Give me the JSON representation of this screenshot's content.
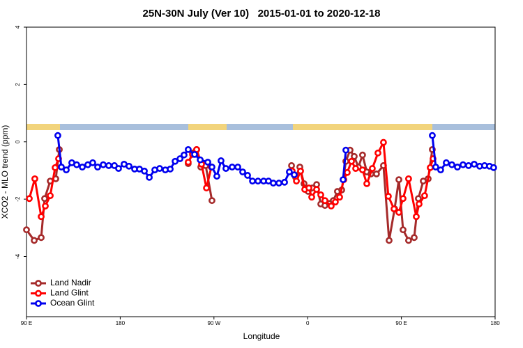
{
  "chart_data": {
    "type": "line",
    "title": "25N-30N July (Ver 10)   2015-01-01 to 2020-12-18",
    "x_label": "Longitude",
    "y_label": "XCO2 - MLO trend (ppm)",
    "xlim": [
      90,
      540
    ],
    "ylim": [
      -6.1,
      4
    ],
    "xticks": [
      {
        "value": 90,
        "label": "90 E"
      },
      {
        "value": 180,
        "label": "180"
      },
      {
        "value": 270,
        "label": "90 W"
      },
      {
        "value": 360,
        "label": "0"
      },
      {
        "value": 450,
        "label": "90 E"
      },
      {
        "value": 540,
        "label": "180"
      }
    ],
    "yticks": [
      4,
      2,
      0,
      -2,
      -4
    ],
    "legend_position": "bottom-left",
    "series": [
      {
        "name": "Land Nadir",
        "color": "#a52a2a",
        "x": [
          90,
          97.4,
          104.1,
          107.4,
          112.8,
          118.1,
          121.5,
          null,
          245.3,
          249.4,
          253.4,
          257.4,
          262.1,
          268.1,
          null,
          344.5,
          348.5,
          352.5,
          356.5,
          360.5,
          364.5,
          368.6,
          372.6,
          376.6,
          380.6,
          384.6,
          388.6,
          392.7,
          396.7,
          400.7,
          404.7,
          408.7,
          412.7,
          416.8,
          420.8,
          426.1,
          432.8,
          438.2,
          443.5,
          447.6,
          451.6,
          456.9,
          462.3,
          466.3,
          471,
          475.7,
          479.7
        ],
        "values": [
          -3.07,
          -3.44,
          -3.34,
          -1.98,
          -1.37,
          -1.29,
          -0.27,
          null,
          -0.76,
          -0.39,
          -0.27,
          -0.88,
          -0.83,
          -2.05,
          null,
          -0.83,
          -1.24,
          -0.88,
          -1.46,
          -1.73,
          -1.61,
          -1.49,
          -2.17,
          -2.22,
          -2.15,
          -2.05,
          -1.73,
          -1.68,
          -0.68,
          -0.29,
          -0.51,
          -0.88,
          -0.46,
          -1.05,
          -1.12,
          -1.12,
          -0.83,
          -3.44,
          -2.34,
          -1.32,
          -3.07,
          -3.44,
          -3.34,
          -1.98,
          -1.37,
          -1.29,
          -0.27
        ]
      },
      {
        "name": "Land Glint",
        "color": "#ff0000",
        "x": [
          92.7,
          98,
          104.1,
          108.1,
          112.8,
          117.5,
          120.8,
          null,
          245.3,
          249.4,
          253.4,
          258.1,
          262.8,
          267.5,
          null,
          345.1,
          349.2,
          353.2,
          357.2,
          361.2,
          363.9,
          368.6,
          372.6,
          376.6,
          382.6,
          386.6,
          390.7,
          394.7,
          398,
          402.1,
          406.1,
          412.7,
          416.8,
          422.1,
          427.5,
          432.8,
          437.5,
          442.9,
          447.6,
          451.6,
          456.9,
          464.3,
          467,
          472.3,
          477.7,
          480.4
        ],
        "values": [
          -1.98,
          -1.29,
          -2.61,
          -2.24,
          -1.88,
          -0.9,
          -0.59,
          null,
          -0.71,
          -0.44,
          -0.27,
          -0.78,
          -1.61,
          -0.88,
          null,
          -1.02,
          -1.37,
          -1.02,
          -1.66,
          -1.61,
          -1.93,
          -1.66,
          -1.85,
          -2.05,
          -2.24,
          -2.1,
          -1.93,
          -1.32,
          -1.07,
          -0.68,
          -0.93,
          -0.98,
          -1.46,
          -0.93,
          -0.39,
          -0.02,
          -1.9,
          -2.34,
          -2.46,
          -1.98,
          -1.29,
          -2.61,
          -2.17,
          -1.88,
          -0.9,
          -0.59
        ]
      },
      {
        "name": "Ocean Glint",
        "color": "#0000ee",
        "x": [
          120.1,
          123.5,
          128.2,
          133.5,
          138.2,
          143.6,
          148.9,
          153.6,
          158.3,
          163.7,
          169,
          174.4,
          178.4,
          183.7,
          188.4,
          193.8,
          198.5,
          203.2,
          207.9,
          213.2,
          217.9,
          223.3,
          228,
          232.7,
          237.4,
          241.3,
          245.3,
          251.4,
          256.8,
          264.1,
          268.1,
          272.8,
          276.8,
          281.5,
          287.5,
          292.9,
          297.6,
          302.3,
          307,
          312.3,
          317.7,
          322.4,
          327,
          332.4,
          337.8,
          342.4,
          347.1,
          null,
          394,
          396.7,
          null,
          479.7,
          483,
          487.7,
          493.1,
          498.5,
          503.8,
          509.2,
          514.5,
          519.9,
          525.2,
          529.9,
          534.6,
          538.6
        ],
        "values": [
          0.22,
          -0.88,
          -0.98,
          -0.73,
          -0.8,
          -0.88,
          -0.8,
          -0.73,
          -0.88,
          -0.8,
          -0.83,
          -0.83,
          -0.93,
          -0.78,
          -0.85,
          -0.95,
          -0.95,
          -1.02,
          -1.24,
          -0.98,
          -0.93,
          -0.98,
          -0.95,
          -0.68,
          -0.59,
          -0.46,
          -0.27,
          -0.44,
          -0.63,
          -0.71,
          -0.88,
          -1.2,
          -0.66,
          -0.93,
          -0.88,
          -0.88,
          -1.05,
          -1.17,
          -1.37,
          -1.37,
          -1.37,
          -1.37,
          -1.44,
          -1.44,
          -1.41,
          -1.05,
          -1.15,
          null,
          -1.32,
          -0.29,
          null,
          0.22,
          -0.88,
          -0.98,
          -0.73,
          -0.8,
          -0.88,
          -0.8,
          -0.83,
          -0.78,
          -0.85,
          -0.83,
          -0.85,
          -0.9
        ]
      }
    ]
  }
}
